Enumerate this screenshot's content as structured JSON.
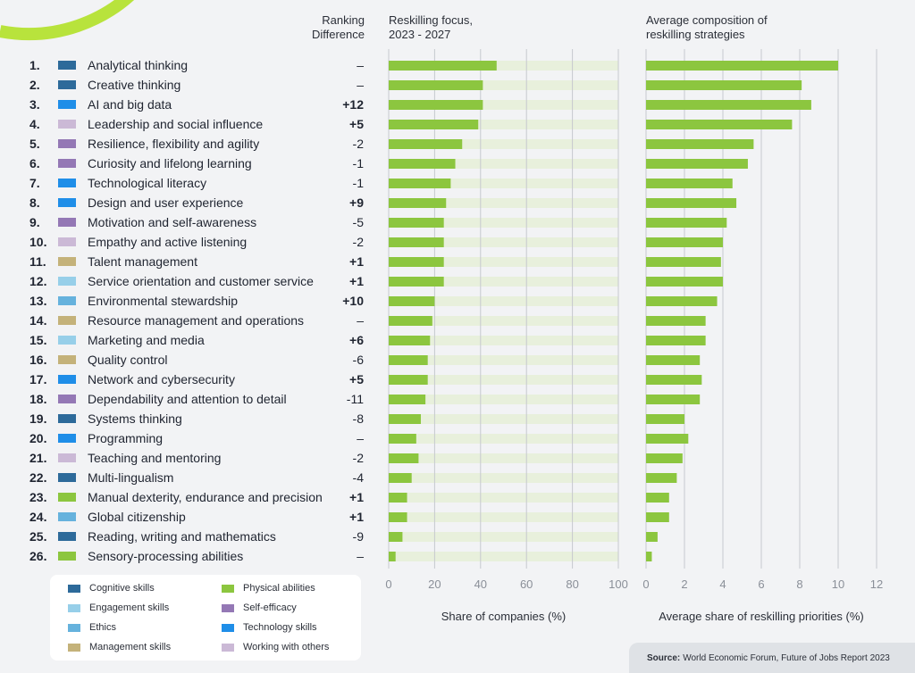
{
  "headers": {
    "ranking_line1": "Ranking",
    "ranking_line2": "Difference",
    "focus_line1": "Reskilling focus,",
    "focus_line2": "2023 - 2027",
    "comp_line1": "Average composition of",
    "comp_line2": "reskilling strategies"
  },
  "colors": {
    "bar": "#8cc63f",
    "track": "#e8f0dc",
    "grid": "#c6c9ce",
    "accent_arc": "#b8e33c"
  },
  "legend": [
    {
      "label": "Cognitive skills",
      "color": "#2d6a9a"
    },
    {
      "label": "Physical abilities",
      "color": "#8cc63f"
    },
    {
      "label": "Engagement skills",
      "color": "#97cfe9"
    },
    {
      "label": "Self-efficacy",
      "color": "#9478b5"
    },
    {
      "label": "Ethics",
      "color": "#66b2dd"
    },
    {
      "label": "Technology skills",
      "color": "#1f8ee8"
    },
    {
      "label": "Management skills",
      "color": "#c4b27a"
    },
    {
      "label": "Working with others",
      "color": "#cbb9d6"
    }
  ],
  "source": {
    "label": "Source:",
    "text": "World Economic Forum, Future of Jobs Report 2023"
  },
  "chart_data": [
    {
      "type": "bar",
      "orientation": "horizontal",
      "title": "Reskilling focus, 2023 - 2027",
      "xlabel": "Share of companies (%)",
      "xlim": [
        0,
        100
      ],
      "xticks": [
        "0",
        "20",
        "40",
        "60",
        "80",
        "100"
      ],
      "grid": true,
      "categories": [
        "Analytical thinking",
        "Creative thinking",
        "AI and big data",
        "Leadership and social influence",
        "Resilience, flexibility and agility",
        "Curiosity and lifelong learning",
        "Technological literacy",
        "Design and user experience",
        "Motivation and self-awareness",
        "Empathy and active listening",
        "Talent management",
        "Service orientation and customer service",
        "Environmental stewardship",
        "Resource management and operations",
        "Marketing and media",
        "Quality control",
        "Network and cybersecurity",
        "Dependability and attention to detail",
        "Systems thinking",
        "Programming",
        "Teaching and mentoring",
        "Multi-lingualism",
        "Manual dexterity, endurance and precision",
        "Global citizenship",
        "Reading, writing and mathematics",
        "Sensory-processing abilities"
      ],
      "ranks": [
        "1.",
        "2.",
        "3.",
        "4.",
        "5.",
        "6.",
        "7.",
        "8.",
        "9.",
        "10.",
        "11.",
        "12.",
        "13.",
        "14.",
        "15.",
        "16.",
        "17.",
        "18.",
        "19.",
        "20.",
        "21.",
        "22.",
        "23.",
        "24.",
        "25.",
        "26."
      ],
      "skill_type": [
        "Cognitive skills",
        "Cognitive skills",
        "Technology skills",
        "Working with others",
        "Self-efficacy",
        "Self-efficacy",
        "Technology skills",
        "Technology skills",
        "Self-efficacy",
        "Working with others",
        "Management skills",
        "Engagement skills",
        "Ethics",
        "Management skills",
        "Engagement skills",
        "Management skills",
        "Technology skills",
        "Self-efficacy",
        "Cognitive skills",
        "Technology skills",
        "Working with others",
        "Cognitive skills",
        "Physical abilities",
        "Ethics",
        "Cognitive skills",
        "Physical abilities"
      ],
      "ranking_difference": [
        "–",
        "–",
        "+12",
        "+5",
        "-2",
        "-1",
        "-1",
        "+9",
        "-5",
        "-2",
        "+1",
        "+1",
        "+10",
        "–",
        "+6",
        "-6",
        "+5",
        "-11",
        "-8",
        "–",
        "-2",
        "-4",
        "+1",
        "+1",
        "-9",
        "–"
      ],
      "values": [
        47,
        41,
        41,
        39,
        32,
        29,
        27,
        25,
        24,
        24,
        24,
        24,
        20,
        19,
        18,
        17,
        17,
        16,
        14,
        12,
        13,
        10,
        8,
        8,
        6,
        3
      ]
    },
    {
      "type": "bar",
      "orientation": "horizontal",
      "title": "Average composition of reskilling strategies",
      "xlabel": "Average share of reskilling priorities (%)",
      "xlim": [
        0,
        12
      ],
      "xticks": [
        "0",
        "2",
        "4",
        "6",
        "8",
        "10",
        "12"
      ],
      "grid": true,
      "values": [
        10.0,
        8.1,
        8.6,
        7.6,
        5.6,
        5.3,
        4.5,
        4.7,
        4.2,
        4.0,
        3.9,
        4.0,
        3.7,
        3.1,
        3.1,
        2.8,
        2.9,
        2.8,
        2.0,
        2.2,
        1.9,
        1.6,
        1.2,
        1.2,
        0.6,
        0.3
      ]
    }
  ]
}
